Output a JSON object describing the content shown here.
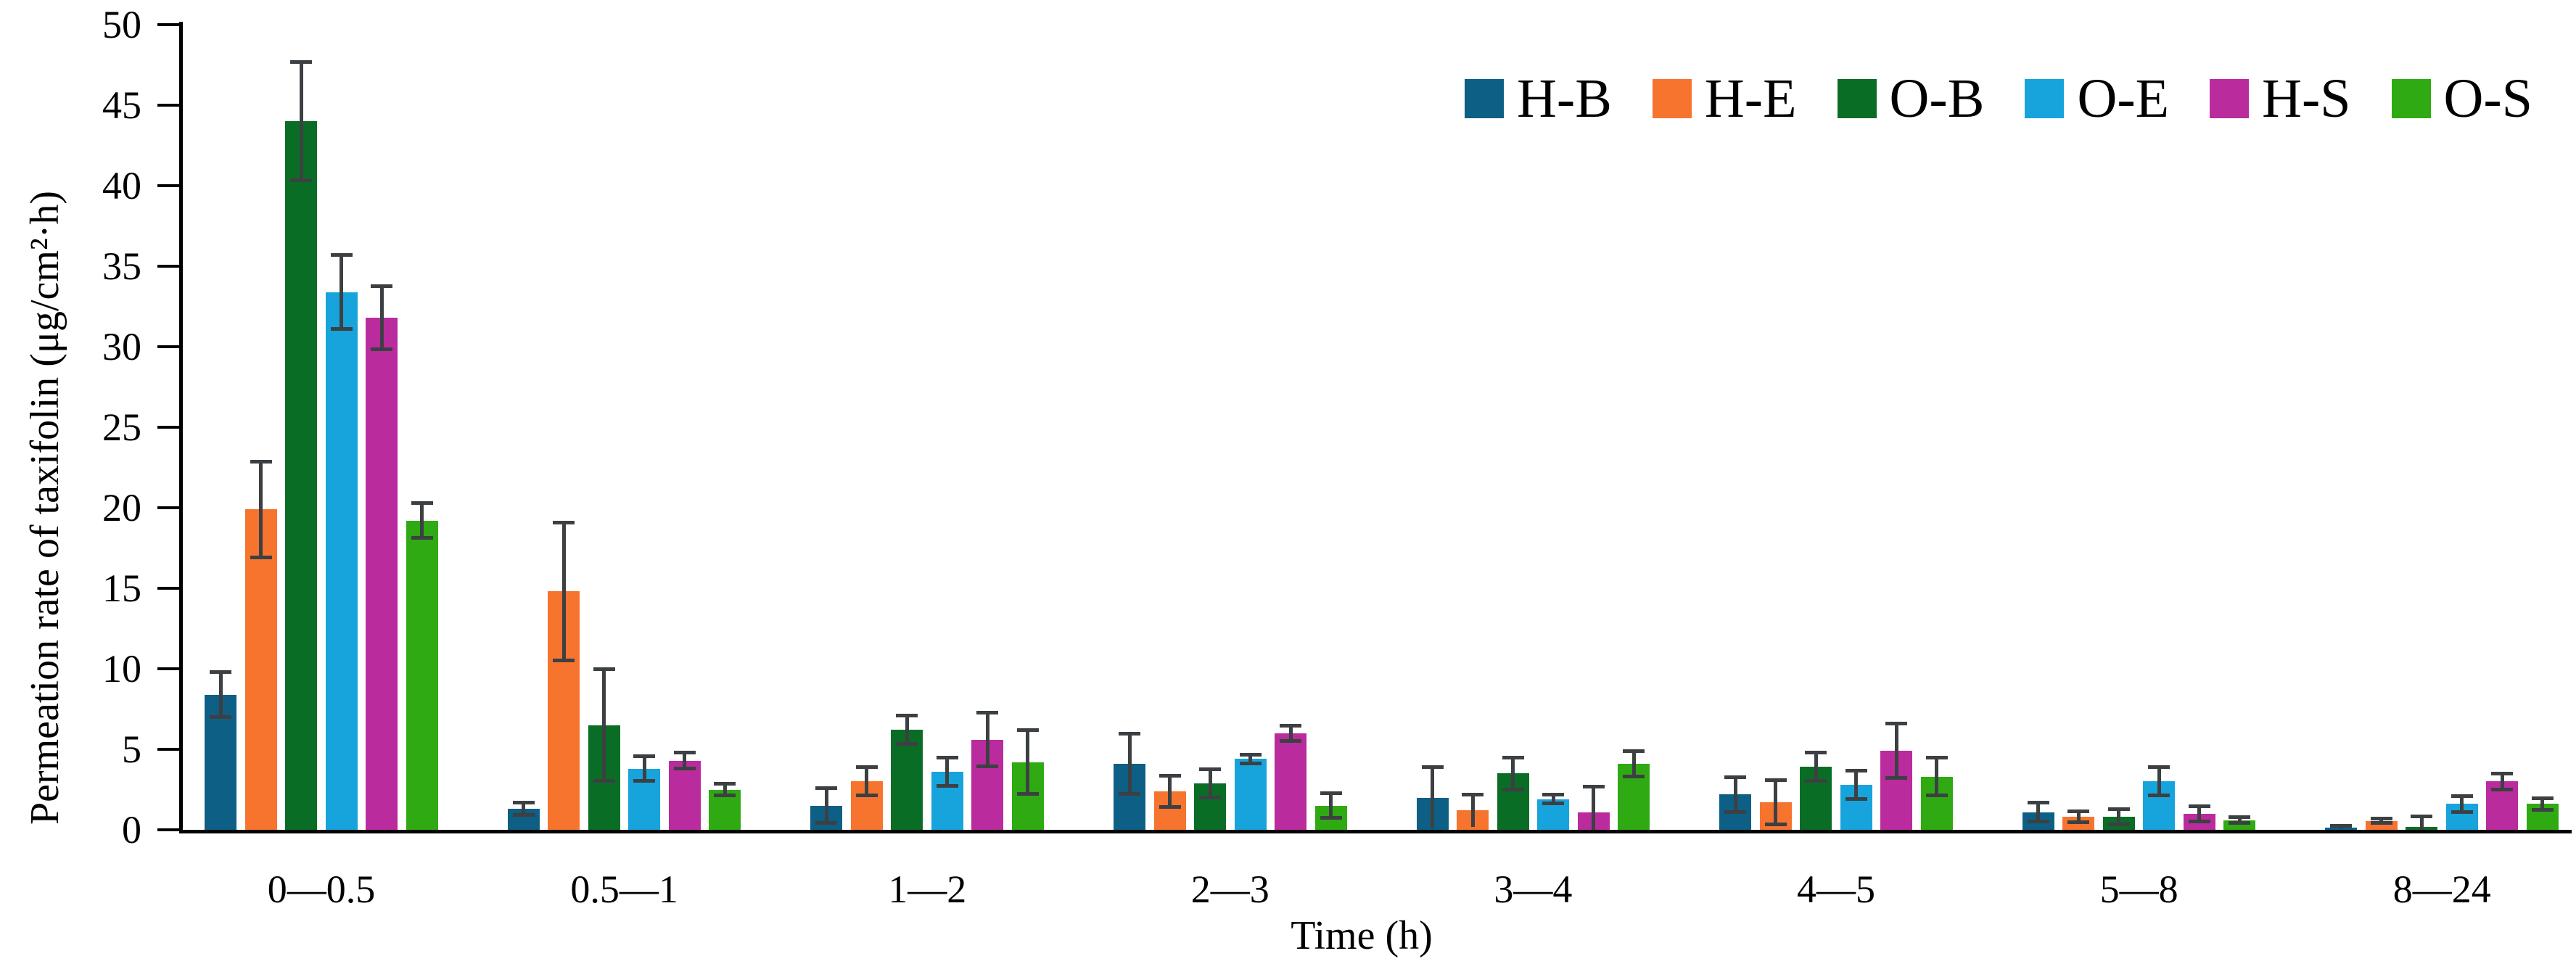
{
  "figure": {
    "background": "#ffffff",
    "axis_color": "#000000",
    "error_bar_color": "#3d4043"
  },
  "chart_data": {
    "type": "bar",
    "title": "",
    "xlabel": "Time (h)",
    "ylabel": "Permeation rate of taxifolin (μg/cm²·h)",
    "ylim": [
      0,
      50
    ],
    "yticks": [
      0,
      5,
      10,
      15,
      20,
      25,
      30,
      35,
      40,
      45,
      50
    ],
    "grid": false,
    "legend_position": "top-right",
    "categories": [
      "0—0.5",
      "0.5—1",
      "1—2",
      "2—3",
      "3—4",
      "4—5",
      "5—8",
      "8—24"
    ],
    "series": [
      {
        "name": "H-B",
        "color": "#0d5f85",
        "values": [
          8.4,
          1.3,
          1.5,
          4.1,
          2.0,
          2.2,
          1.1,
          0.15
        ],
        "errors": [
          1.4,
          0.4,
          1.1,
          1.9,
          1.9,
          1.1,
          0.6,
          0.1
        ]
      },
      {
        "name": "H-E",
        "color": "#f7742f",
        "values": [
          19.9,
          14.8,
          3.0,
          2.4,
          1.2,
          1.7,
          0.8,
          0.55
        ],
        "errors": [
          3.0,
          4.3,
          0.9,
          1.0,
          1.0,
          1.4,
          0.35,
          0.15
        ]
      },
      {
        "name": "O-B",
        "color": "#0a6d26",
        "values": [
          44.0,
          6.5,
          6.2,
          2.9,
          3.5,
          3.9,
          0.8,
          0.2
        ],
        "errors": [
          3.7,
          3.5,
          0.9,
          0.9,
          1.0,
          0.9,
          0.5,
          0.65
        ]
      },
      {
        "name": "O-E",
        "color": "#17a4dc",
        "values": [
          33.4,
          3.8,
          3.6,
          4.4,
          1.9,
          2.8,
          3.0,
          1.6
        ],
        "errors": [
          2.3,
          0.8,
          0.9,
          0.3,
          0.3,
          0.9,
          0.9,
          0.5
        ]
      },
      {
        "name": "H-S",
        "color": "#ba2b9e",
        "values": [
          31.8,
          4.3,
          5.6,
          6.0,
          1.1,
          4.9,
          1.0,
          3.0
        ],
        "errors": [
          2.0,
          0.5,
          1.7,
          0.5,
          1.6,
          1.7,
          0.5,
          0.5
        ]
      },
      {
        "name": "O-S",
        "color": "#2faa12",
        "values": [
          19.2,
          2.5,
          4.2,
          1.5,
          4.1,
          3.3,
          0.6,
          1.6
        ],
        "errors": [
          1.1,
          0.4,
          2.0,
          0.8,
          0.8,
          1.2,
          0.2,
          0.4
        ]
      }
    ]
  }
}
